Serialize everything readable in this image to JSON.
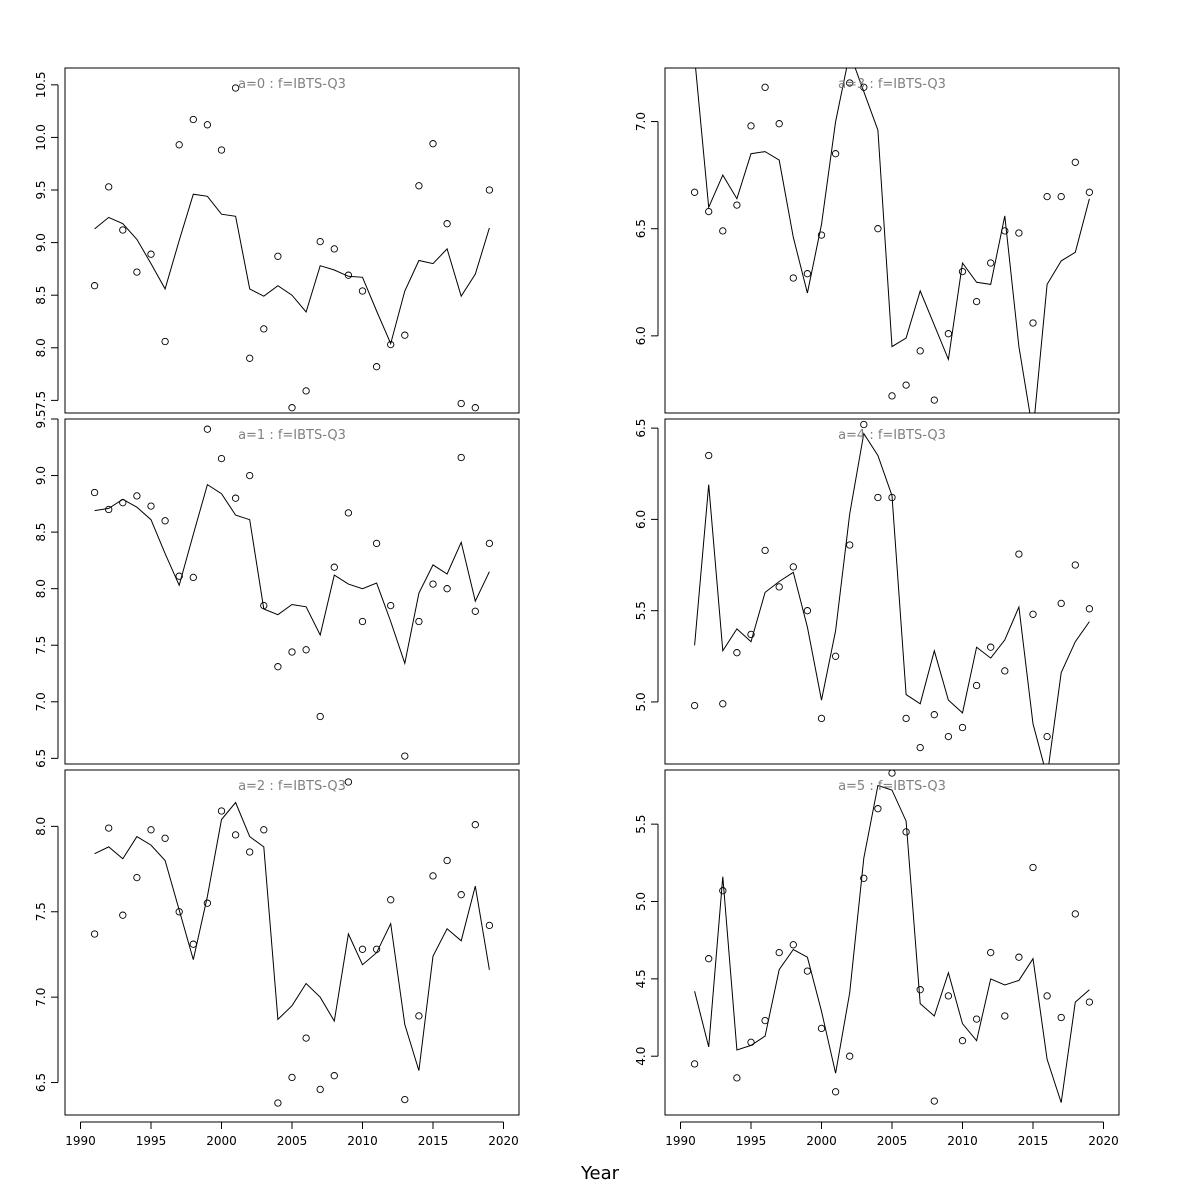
{
  "chart_data": {
    "type": "line",
    "xlabel": "Year",
    "x_tick_labels": [
      "1990",
      "1995",
      "2000",
      "2005",
      "2010",
      "2015",
      "2020"
    ],
    "xlim": [
      1988.9,
      2021.1
    ],
    "years": [
      1991,
      1992,
      1993,
      1994,
      1995,
      1996,
      1997,
      1998,
      1999,
      2000,
      2001,
      2002,
      2003,
      2004,
      2005,
      2006,
      2007,
      2008,
      2009,
      2010,
      2011,
      2012,
      2013,
      2014,
      2015,
      2016,
      2017,
      2018,
      2019
    ],
    "panels": [
      {
        "title": "a=0  :  f=IBTS-Q3",
        "ylim": [
          7.38,
          10.66
        ],
        "y_tick_labels": [
          "7.5",
          "8.0",
          "8.5",
          "9.0",
          "9.5",
          "10.0",
          "10.5"
        ],
        "observed": [
          8.59,
          9.53,
          9.12,
          8.72,
          8.89,
          8.06,
          9.93,
          10.17,
          10.12,
          9.88,
          10.47,
          7.9,
          8.18,
          8.87,
          7.43,
          7.59,
          9.01,
          8.94,
          8.69,
          8.54,
          7.82,
          8.03,
          8.12,
          9.54,
          9.94,
          9.18,
          7.47,
          7.43,
          9.5
        ],
        "fitted": [
          9.13,
          9.24,
          9.18,
          9.03,
          8.8,
          8.56,
          9.02,
          9.46,
          9.44,
          9.27,
          9.25,
          8.56,
          8.49,
          8.59,
          8.5,
          8.34,
          8.78,
          8.74,
          8.68,
          8.67,
          8.35,
          8.04,
          8.54,
          8.83,
          8.8,
          8.94,
          8.49,
          8.7,
          9.14
        ]
      },
      {
        "title": "a=3  :  f=IBTS-Q3",
        "ylim": [
          5.64,
          7.25
        ],
        "y_tick_labels": [
          "6.0",
          "6.5",
          "7.0"
        ],
        "observed": [
          6.67,
          6.58,
          6.49,
          6.61,
          6.98,
          7.16,
          6.99,
          6.27,
          6.29,
          6.47,
          6.85,
          7.18,
          7.16,
          6.5,
          5.72,
          5.77,
          5.93,
          5.7,
          6.01,
          6.3,
          6.16,
          6.34,
          6.49,
          6.48,
          6.06,
          6.65,
          6.65,
          6.81,
          6.67
        ],
        "fitted": [
          7.3,
          6.6,
          6.75,
          6.64,
          6.85,
          6.86,
          6.82,
          6.46,
          6.2,
          6.52,
          7.0,
          7.32,
          7.14,
          6.96,
          5.95,
          5.99,
          6.21,
          6.05,
          5.89,
          6.34,
          6.25,
          6.24,
          6.56,
          5.95,
          5.55,
          6.24,
          6.35,
          6.39,
          6.64
        ]
      },
      {
        "title": "a=1  :  f=IBTS-Q3",
        "ylim": [
          6.45,
          9.5
        ],
        "y_tick_labels": [
          "6.5",
          "7.0",
          "7.5",
          "8.0",
          "8.5",
          "9.0",
          "9.5"
        ],
        "observed": [
          8.85,
          8.7,
          8.76,
          8.82,
          8.73,
          8.6,
          8.11,
          8.1,
          9.41,
          9.15,
          8.8,
          9.0,
          7.85,
          7.31,
          7.44,
          7.46,
          6.87,
          8.19,
          8.67,
          7.71,
          8.4,
          7.85,
          6.52,
          7.71,
          8.04,
          8.0,
          9.16,
          7.8,
          8.4
        ],
        "fitted": [
          8.69,
          8.71,
          8.79,
          8.72,
          8.61,
          8.31,
          8.03,
          8.48,
          8.92,
          8.84,
          8.65,
          8.61,
          7.82,
          7.77,
          7.86,
          7.84,
          7.59,
          8.12,
          8.04,
          8.0,
          8.05,
          7.71,
          7.34,
          7.96,
          8.21,
          8.13,
          8.41,
          7.89,
          8.15
        ]
      },
      {
        "title": "a=4  :  f=IBTS-Q3",
        "ylim": [
          4.66,
          6.55
        ],
        "y_tick_labels": [
          "5.0",
          "5.5",
          "6.0",
          "6.5"
        ],
        "observed": [
          4.98,
          6.35,
          4.99,
          5.27,
          5.37,
          5.83,
          5.63,
          5.74,
          5.5,
          4.91,
          5.25,
          5.86,
          6.52,
          6.12,
          6.12,
          4.91,
          4.75,
          4.93,
          4.81,
          4.86,
          5.09,
          5.3,
          5.17,
          5.81,
          5.48,
          4.81,
          5.54,
          5.75,
          5.51
        ],
        "fitted": [
          5.31,
          6.19,
          5.28,
          5.4,
          5.33,
          5.6,
          5.66,
          5.71,
          5.41,
          5.01,
          5.39,
          6.03,
          6.47,
          6.35,
          6.13,
          5.04,
          4.99,
          5.28,
          5.01,
          4.94,
          5.3,
          5.24,
          5.34,
          5.52,
          4.88,
          4.59,
          5.16,
          5.33,
          5.44
        ]
      },
      {
        "title": "a=2  :  f=IBTS-Q3",
        "ylim": [
          6.31,
          8.33
        ],
        "y_tick_labels": [
          "6.5",
          "7.0",
          "7.5",
          "8.0"
        ],
        "observed": [
          7.37,
          7.99,
          7.48,
          7.7,
          7.98,
          7.93,
          7.5,
          7.31,
          7.55,
          8.09,
          7.95,
          7.85,
          7.98,
          6.38,
          6.53,
          6.76,
          6.46,
          6.54,
          8.26,
          7.28,
          7.28,
          7.57,
          6.4,
          6.89,
          7.71,
          7.8,
          7.6,
          8.01,
          7.42
        ],
        "fitted": [
          7.84,
          7.88,
          7.81,
          7.94,
          7.89,
          7.8,
          7.51,
          7.22,
          7.59,
          8.04,
          8.14,
          7.94,
          7.88,
          6.87,
          6.95,
          7.08,
          7.0,
          6.86,
          7.37,
          7.19,
          7.26,
          7.43,
          6.84,
          6.57,
          7.24,
          7.4,
          7.33,
          7.65,
          7.16
        ]
      },
      {
        "title": "a=5  :  f=IBTS-Q3",
        "ylim": [
          3.62,
          5.85
        ],
        "y_tick_labels": [
          "4.0",
          "4.5",
          "5.0",
          "5.5"
        ],
        "observed": [
          3.95,
          4.63,
          5.07,
          3.86,
          4.09,
          4.23,
          4.67,
          4.72,
          4.55,
          4.18,
          3.77,
          4.0,
          5.15,
          5.6,
          5.83,
          5.45,
          4.43,
          3.71,
          4.39,
          4.1,
          4.24,
          4.67,
          4.26,
          4.64,
          5.22,
          4.39,
          4.25,
          4.92,
          4.35
        ],
        "fitted": [
          4.42,
          4.06,
          5.16,
          4.04,
          4.07,
          4.13,
          4.56,
          4.69,
          4.64,
          4.29,
          3.89,
          4.41,
          5.28,
          5.75,
          5.72,
          5.52,
          4.34,
          4.26,
          4.54,
          4.21,
          4.1,
          4.5,
          4.46,
          4.49,
          4.63,
          3.98,
          3.7,
          4.35,
          4.43
        ]
      }
    ]
  }
}
